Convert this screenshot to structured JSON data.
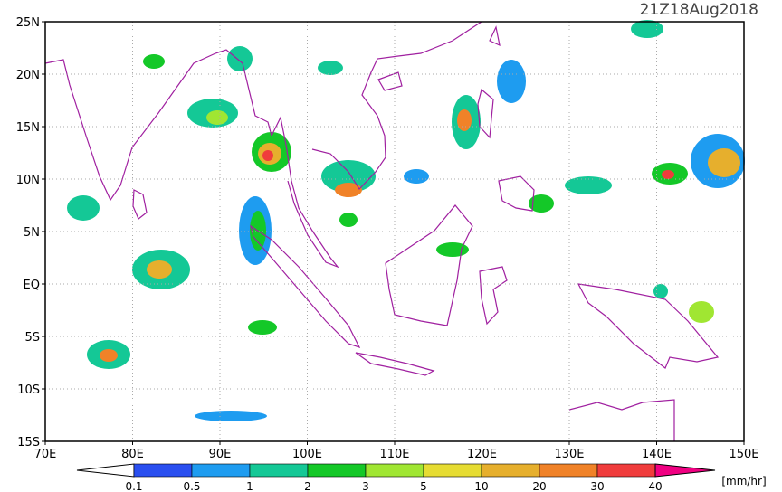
{
  "title": "21Z18Aug2018",
  "lat_labels": [
    "25N",
    "20N",
    "15N",
    "10N",
    "5N",
    "EQ",
    "5S",
    "10S",
    "15S"
  ],
  "lon_labels": [
    "70E",
    "80E",
    "90E",
    "100E",
    "110E",
    "120E",
    "130E",
    "140E",
    "150E"
  ],
  "colorbar": {
    "levels": [
      0.1,
      0.5,
      1,
      2,
      3,
      5,
      10,
      20,
      30,
      40
    ],
    "under_color": "#ffffff",
    "colors": [
      "#2a4ff0",
      "#1e9cf0",
      "#14c896",
      "#14c828",
      "#a0e632",
      "#e6dc32",
      "#e6af2d",
      "#f08228",
      "#f03c3c",
      "#f00082"
    ],
    "unit": "[mm/hr]"
  }
}
